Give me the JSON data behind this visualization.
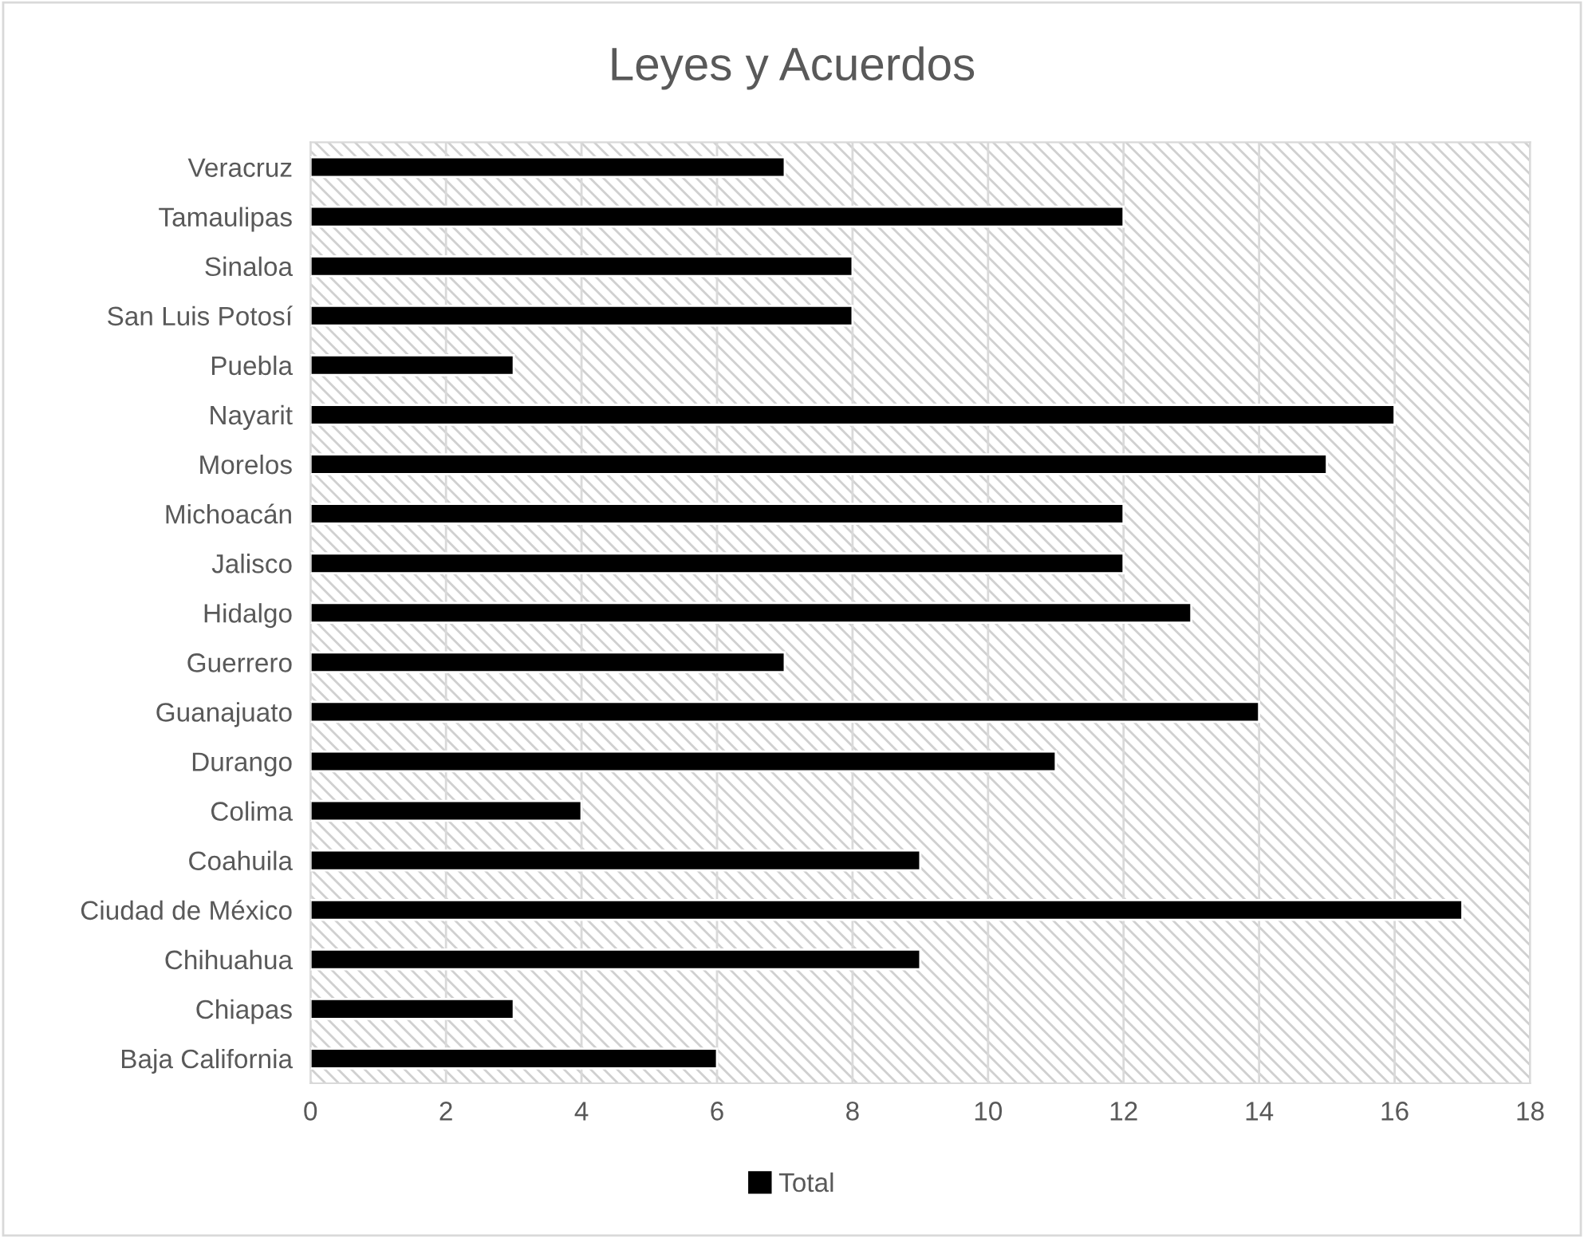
{
  "chart_data": {
    "type": "bar",
    "orientation": "horizontal",
    "title": "Leyes y Acuerdos",
    "categories": [
      "Veracruz",
      "Tamaulipas",
      "Sinaloa",
      "San Luis Potosí",
      "Puebla",
      "Nayarit",
      "Morelos",
      "Michoacán",
      "Jalisco",
      "Hidalgo",
      "Guerrero",
      "Guanajuato",
      "Durango",
      "Colima",
      "Coahuila",
      "Ciudad de México",
      "Chihuahua",
      "Chiapas",
      "Baja California"
    ],
    "series": [
      {
        "name": "Total",
        "color": "#000000",
        "values": [
          7,
          12,
          8,
          8,
          3,
          16,
          15,
          12,
          12,
          13,
          7,
          14,
          11,
          4,
          9,
          17,
          9,
          3,
          6
        ]
      }
    ],
    "xlim": [
      0,
      18
    ],
    "xticks": [
      0,
      2,
      4,
      6,
      8,
      10,
      12,
      14,
      16,
      18
    ],
    "grid": "x",
    "legend": "bottom"
  }
}
